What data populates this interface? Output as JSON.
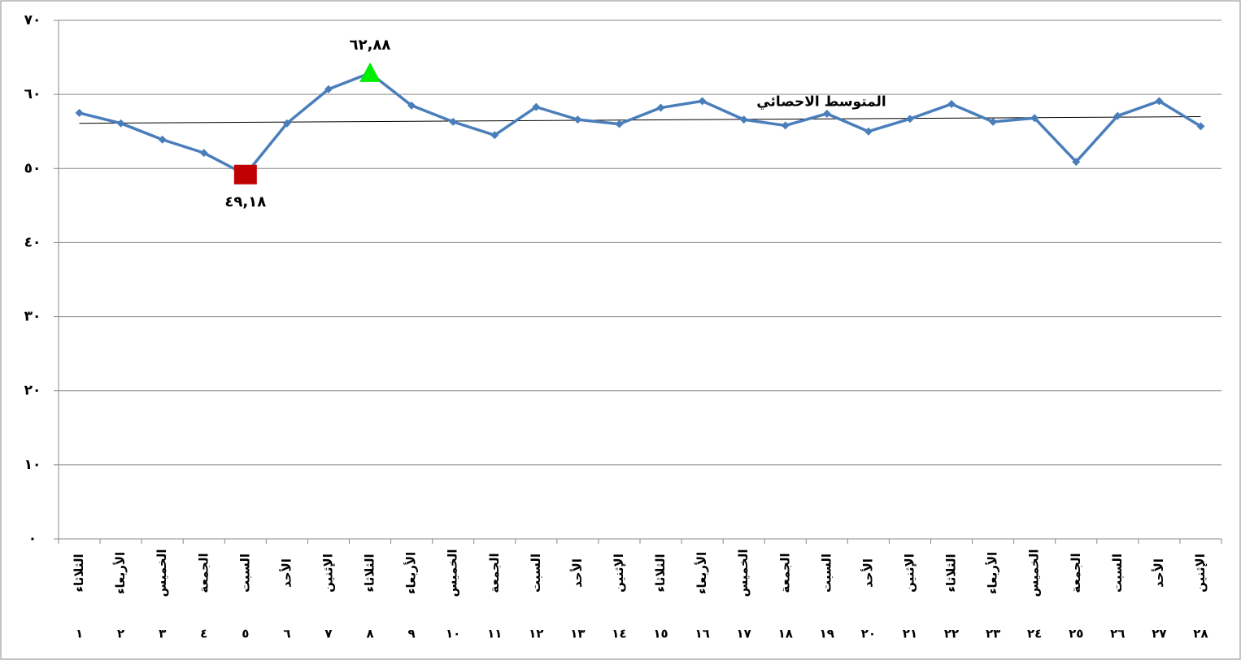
{
  "chart_data": {
    "type": "line",
    "categories": [
      "الثلاثاء",
      "الأربعاء",
      "الخميس",
      "الجمعة",
      "السبت",
      "الأحد",
      "الإثنين",
      "الثلاثاء",
      "الأربعاء",
      "الخميس",
      "الجمعة",
      "السبت",
      "الأحد",
      "الإثنين",
      "الثلاثاء",
      "الأربعاء",
      "الخميس",
      "الجمعة",
      "السبت",
      "الأحد",
      "الإثنين",
      "الثلاثاء",
      "الأربعاء",
      "الخميس",
      "الجمعة",
      "السبت",
      "الأحد",
      "الإثنين"
    ],
    "category_numbers": [
      "١",
      "٢",
      "٣",
      "٤",
      "٥",
      "٦",
      "٧",
      "٨",
      "٩",
      "١٠",
      "١١",
      "١٢",
      "١٣",
      "١٤",
      "١٥",
      "١٦",
      "١٧",
      "١٨",
      "١٩",
      "٢٠",
      "٢١",
      "٢٢",
      "٢٣",
      "٢٤",
      "٢٥",
      "٢٦",
      "٢٧",
      "٢٨"
    ],
    "series": [
      {
        "color": "#4a7ebb",
        "values": [
          57.5,
          56.1,
          53.9,
          52.1,
          49.18,
          56.1,
          60.7,
          62.88,
          58.5,
          56.3,
          54.5,
          58.3,
          56.6,
          56.0,
          58.2,
          59.1,
          56.6,
          55.8,
          57.4,
          55.0,
          56.7,
          58.7,
          56.3,
          56.8,
          50.9,
          57.1,
          59.1,
          55.7
        ],
        "value_labels": [
          null,
          null,
          null,
          null,
          "٤٩,١٨",
          null,
          null,
          "٦٢,٨٨",
          null,
          null,
          null,
          null,
          null,
          null,
          null,
          null,
          null,
          null,
          null,
          null,
          null,
          null,
          null,
          null,
          null,
          null,
          null,
          null
        ]
      }
    ],
    "min_color": "#c00000",
    "max_color": "#00ee00",
    "trendline": {
      "label": "المتوسط الاحصائي",
      "values": [
        56.1,
        57.0
      ],
      "color": "#000000"
    },
    "ylim": [
      0,
      70
    ],
    "yticks": [
      {
        "value": 0,
        "label": "٠"
      },
      {
        "value": 10,
        "label": "١٠"
      },
      {
        "value": 20,
        "label": "٢٠"
      },
      {
        "value": 30,
        "label": "٣٠"
      },
      {
        "value": 40,
        "label": "٤٠"
      },
      {
        "value": 50,
        "label": "٥٠"
      },
      {
        "value": 60,
        "label": "٦٠"
      },
      {
        "value": 70,
        "label": "٧٠"
      }
    ],
    "grid": true
  }
}
